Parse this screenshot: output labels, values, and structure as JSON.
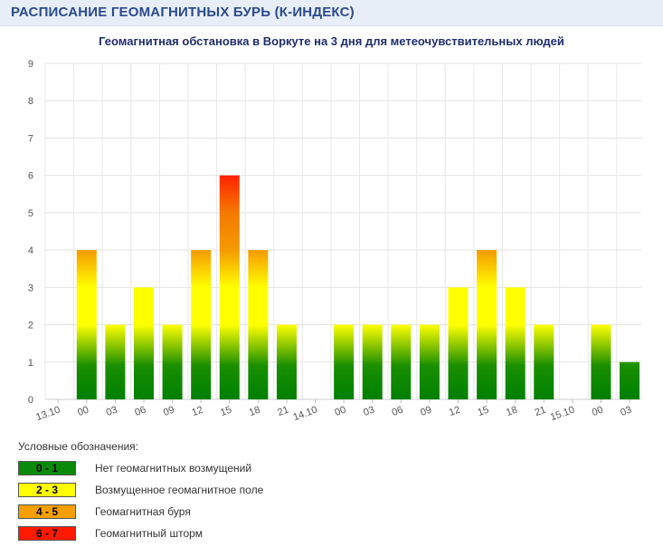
{
  "header": {
    "title": "РАСПИСАНИЕ ГЕОМАГНИТНЫХ БУРЬ (К-ИНДЕКС)"
  },
  "chart_data": {
    "type": "bar",
    "title": "Геомагнитная обстановка в Воркуте на 3 дня для метеочувствительных людей",
    "xlabel": "",
    "ylabel": "",
    "ylim": [
      0,
      9
    ],
    "yticks": [
      "0",
      "1",
      "2",
      "3",
      "4",
      "5",
      "6",
      "7",
      "8",
      "9"
    ],
    "grid": true,
    "categories": [
      "13.10",
      "00",
      "03",
      "06",
      "09",
      "12",
      "15",
      "18",
      "21",
      "14.10",
      "00",
      "03",
      "06",
      "09",
      "12",
      "15",
      "18",
      "21",
      "15.10",
      "00",
      "03"
    ],
    "values": [
      null,
      4,
      2,
      3,
      2,
      4,
      6,
      4,
      2,
      null,
      2,
      2,
      2,
      2,
      3,
      4,
      3,
      2,
      null,
      2,
      1
    ]
  },
  "legend": {
    "heading": "Условные обозначения:",
    "items": [
      {
        "range": "0 - 1",
        "label": "Нет геомагнитных возмущений",
        "color": "#0a8a0a"
      },
      {
        "range": "2 - 3",
        "label": "Возмущенное геомагнитное поле",
        "color": "#ffff00"
      },
      {
        "range": "4 - 5",
        "label": "Геомагнитная буря",
        "color": "#f5a000"
      },
      {
        "range": "6 - 7",
        "label": "Геомагнитный шторм",
        "color": "#ff1a00"
      }
    ]
  }
}
